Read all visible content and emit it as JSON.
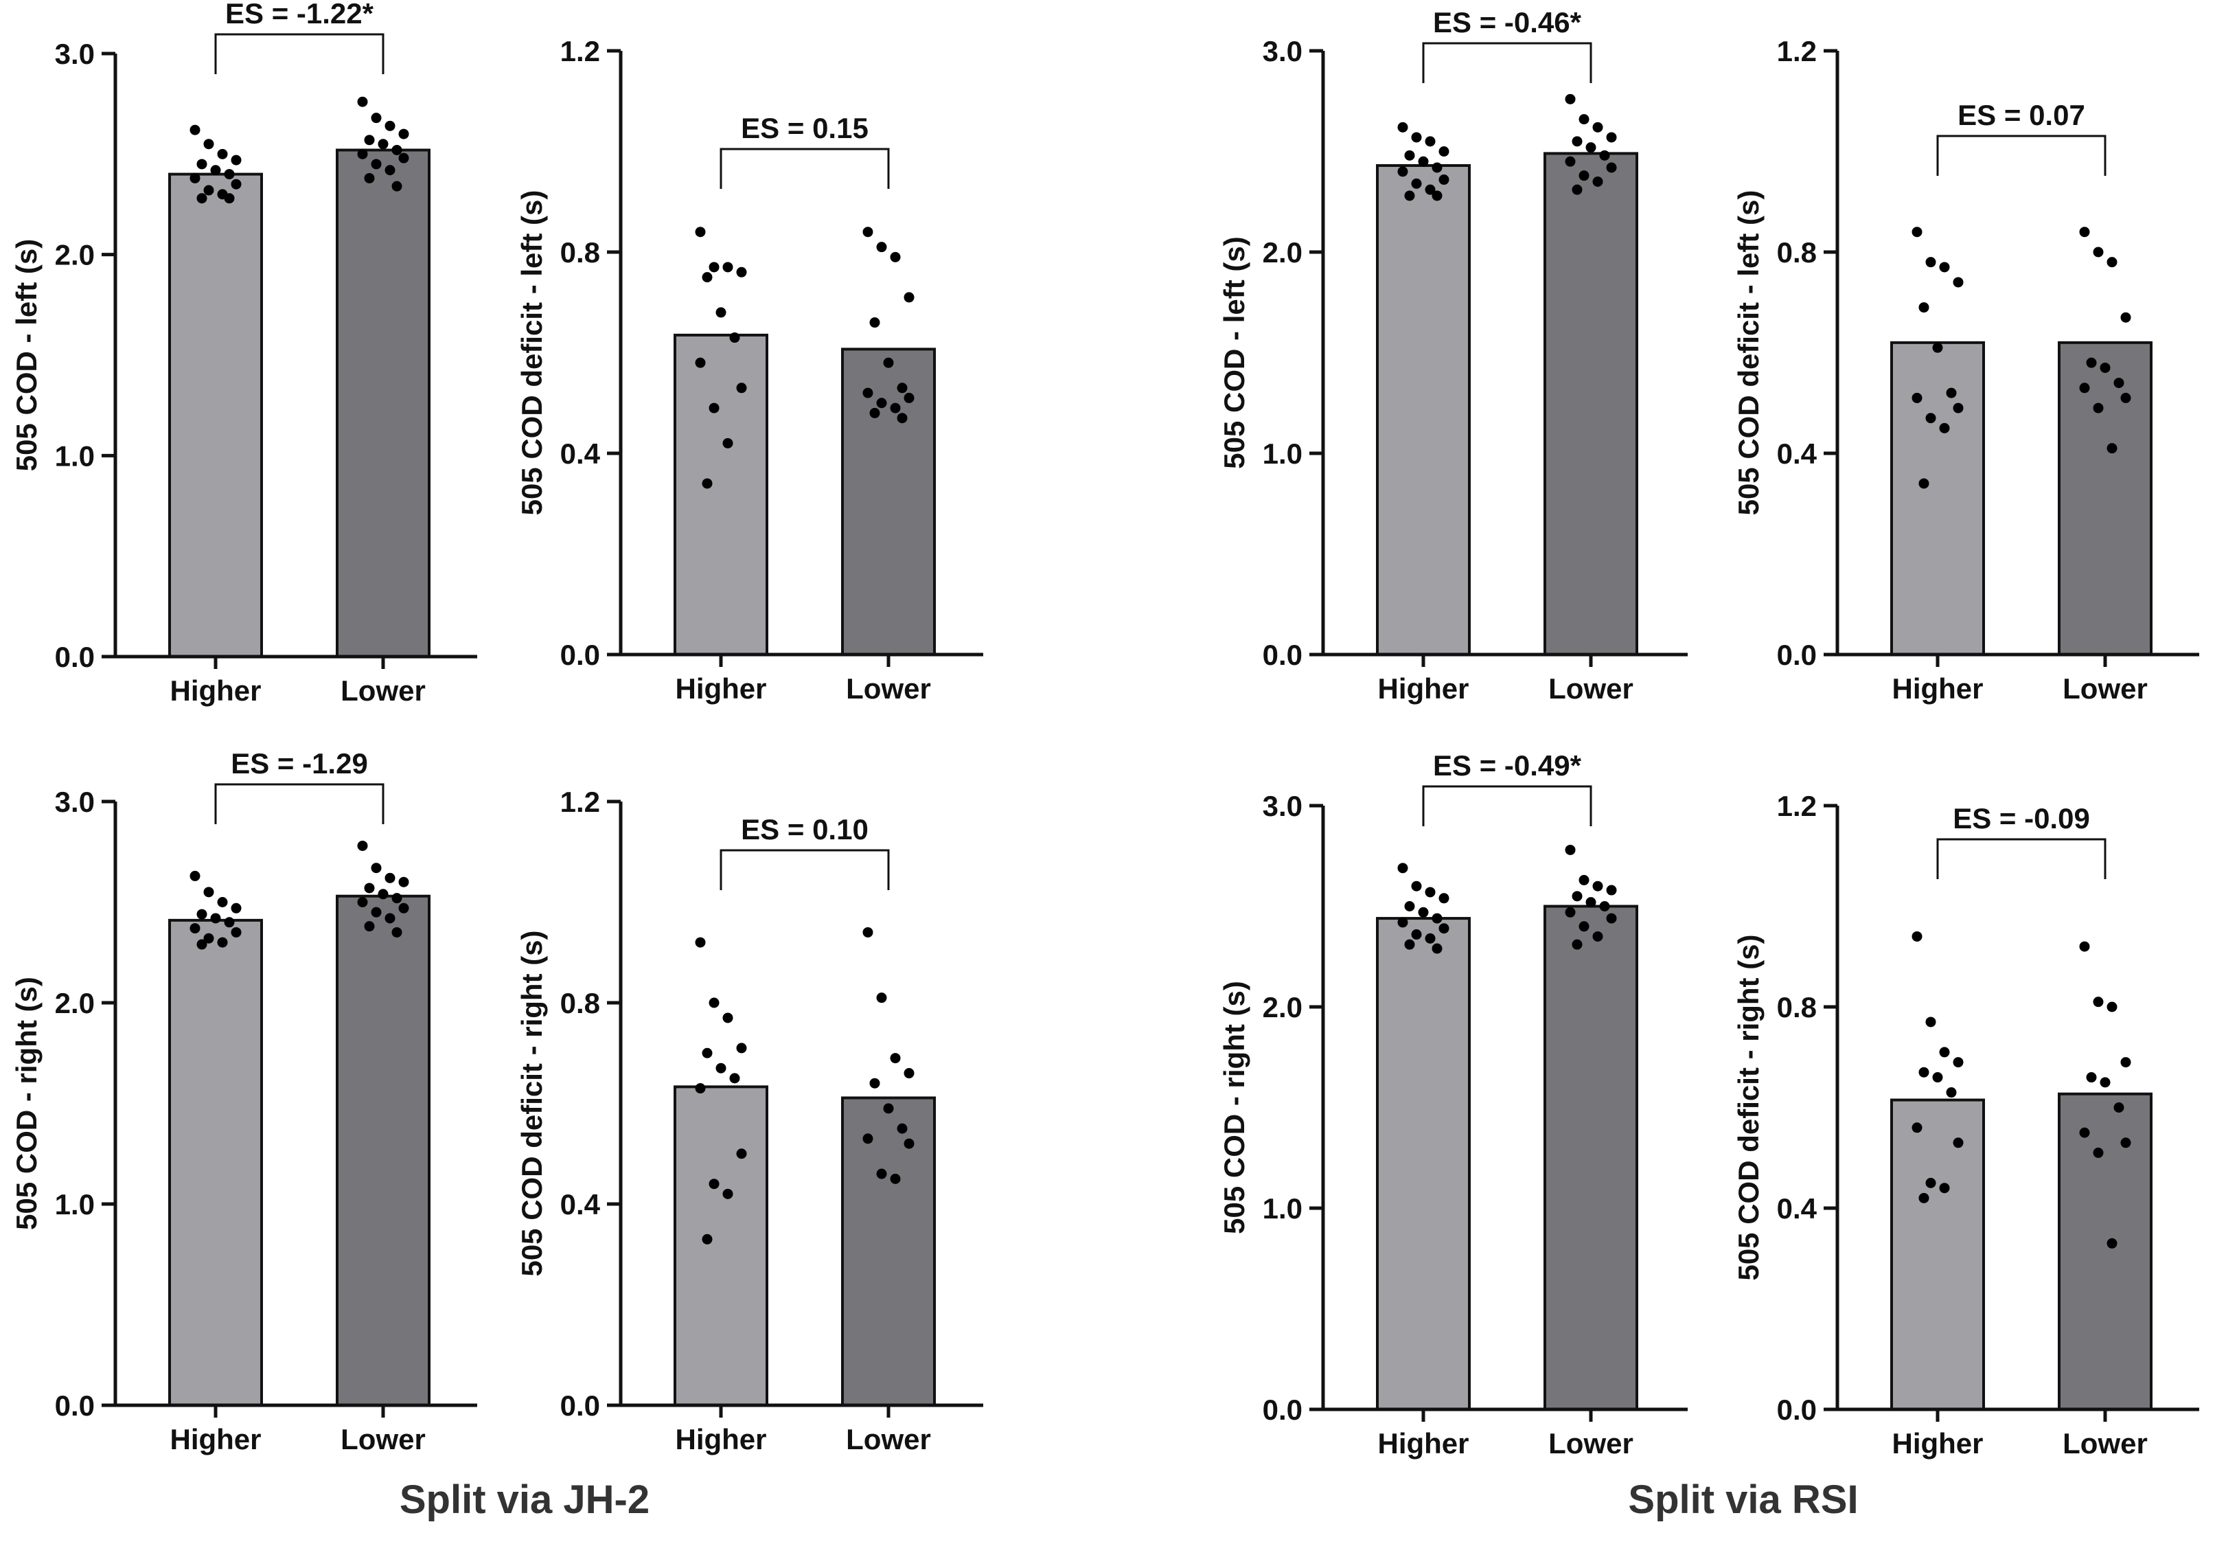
{
  "colors": {
    "higher": "#a0a0a5",
    "lower": "#76767a",
    "axis": "#111111",
    "dot": "#000000",
    "text": "#111111",
    "caption": "#333333"
  },
  "group_labels": [
    "Split via JH-2",
    "Split via RSI"
  ],
  "chart_data": [
    {
      "id": "jh2-cod-left",
      "type": "bar",
      "categories": [
        "Higher",
        "Lower"
      ],
      "values": [
        2.4,
        2.52
      ],
      "points": [
        [
          2.62,
          2.55,
          2.5,
          2.47,
          2.45,
          2.42,
          2.4,
          2.38,
          2.35,
          2.32,
          2.3,
          2.28,
          2.28
        ],
        [
          2.76,
          2.68,
          2.64,
          2.6,
          2.57,
          2.55,
          2.52,
          2.5,
          2.48,
          2.45,
          2.42,
          2.38,
          2.34
        ]
      ],
      "ylabel": "505 COD - left (s)",
      "ylim": [
        0,
        3.0
      ],
      "yticks": [
        0,
        1.0,
        2.0,
        3.0
      ],
      "tick_format": "0.0",
      "es": "ES = -1.22*"
    },
    {
      "id": "jh2-deficit-left",
      "type": "bar",
      "categories": [
        "Higher",
        "Lower"
      ],
      "values": [
        0.635,
        0.607
      ],
      "points": [
        [
          0.84,
          0.77,
          0.77,
          0.76,
          0.75,
          0.68,
          0.63,
          0.58,
          0.53,
          0.49,
          0.42,
          0.34
        ],
        [
          0.84,
          0.81,
          0.79,
          0.71,
          0.66,
          0.58,
          0.53,
          0.52,
          0.51,
          0.5,
          0.49,
          0.48,
          0.47
        ]
      ],
      "ylabel": "505 COD deficit - left (s)",
      "ylim": [
        0,
        1.2
      ],
      "yticks": [
        0,
        0.4,
        0.8,
        1.2
      ],
      "tick_format": "0.0",
      "es": "ES = 0.15"
    },
    {
      "id": "rsi-cod-left",
      "type": "bar",
      "categories": [
        "Higher",
        "Lower"
      ],
      "values": [
        2.43,
        2.49
      ],
      "points": [
        [
          2.62,
          2.57,
          2.55,
          2.5,
          2.48,
          2.45,
          2.42,
          2.4,
          2.36,
          2.34,
          2.31,
          2.28,
          2.28
        ],
        [
          2.76,
          2.66,
          2.62,
          2.57,
          2.55,
          2.52,
          2.48,
          2.45,
          2.42,
          2.38,
          2.35,
          2.31
        ]
      ],
      "ylabel": "505 COD - left (s)",
      "ylim": [
        0,
        3.0
      ],
      "yticks": [
        0,
        1.0,
        2.0,
        3.0
      ],
      "tick_format": "0.0",
      "es": "ES = -0.46*"
    },
    {
      "id": "rsi-deficit-left",
      "type": "bar",
      "categories": [
        "Higher",
        "Lower"
      ],
      "values": [
        0.62,
        0.62
      ],
      "points": [
        [
          0.84,
          0.78,
          0.77,
          0.74,
          0.69,
          0.61,
          0.52,
          0.51,
          0.49,
          0.47,
          0.45,
          0.34
        ],
        [
          0.84,
          0.8,
          0.78,
          0.67,
          0.58,
          0.57,
          0.54,
          0.53,
          0.51,
          0.49,
          0.41
        ]
      ],
      "ylabel": "505 COD deficit - left (s)",
      "ylim": [
        0,
        1.2
      ],
      "yticks": [
        0,
        0.4,
        0.8,
        1.2
      ],
      "tick_format": "0.0",
      "es": "ES = 0.07"
    },
    {
      "id": "jh2-cod-right",
      "type": "bar",
      "categories": [
        "Higher",
        "Lower"
      ],
      "values": [
        2.41,
        2.53
      ],
      "points": [
        [
          2.63,
          2.55,
          2.5,
          2.47,
          2.44,
          2.42,
          2.4,
          2.37,
          2.35,
          2.32,
          2.3,
          2.29
        ],
        [
          2.78,
          2.67,
          2.62,
          2.6,
          2.57,
          2.54,
          2.52,
          2.5,
          2.47,
          2.45,
          2.42,
          2.38,
          2.35
        ]
      ],
      "ylabel": "505 COD - right (s)",
      "ylim": [
        0,
        3.0
      ],
      "yticks": [
        0,
        1.0,
        2.0,
        3.0
      ],
      "tick_format": "0.0",
      "es": "ES = -1.29"
    },
    {
      "id": "jh2-deficit-right",
      "type": "bar",
      "categories": [
        "Higher",
        "Lower"
      ],
      "values": [
        0.633,
        0.611
      ],
      "points": [
        [
          0.92,
          0.8,
          0.77,
          0.71,
          0.7,
          0.67,
          0.65,
          0.63,
          0.5,
          0.44,
          0.42,
          0.33
        ],
        [
          0.94,
          0.81,
          0.69,
          0.66,
          0.64,
          0.59,
          0.55,
          0.53,
          0.52,
          0.46,
          0.45
        ]
      ],
      "ylabel": "505 COD deficit - right (s)",
      "ylim": [
        0,
        1.2
      ],
      "yticks": [
        0,
        0.4,
        0.8,
        1.2
      ],
      "tick_format": "0.0",
      "es": "ES = 0.10"
    },
    {
      "id": "rsi-cod-right",
      "type": "bar",
      "categories": [
        "Higher",
        "Lower"
      ],
      "values": [
        2.44,
        2.5
      ],
      "points": [
        [
          2.69,
          2.6,
          2.57,
          2.54,
          2.5,
          2.47,
          2.44,
          2.42,
          2.39,
          2.36,
          2.34,
          2.31,
          2.29
        ],
        [
          2.78,
          2.63,
          2.6,
          2.58,
          2.55,
          2.52,
          2.5,
          2.47,
          2.44,
          2.4,
          2.35,
          2.31
        ]
      ],
      "ylabel": "505 COD - right (s)",
      "ylim": [
        0,
        3.0
      ],
      "yticks": [
        0,
        1.0,
        2.0,
        3.0
      ],
      "tick_format": "0.0",
      "es": "ES = -0.49*"
    },
    {
      "id": "rsi-deficit-right",
      "type": "bar",
      "categories": [
        "Higher",
        "Lower"
      ],
      "values": [
        0.615,
        0.627
      ],
      "points": [
        [
          0.94,
          0.77,
          0.71,
          0.69,
          0.67,
          0.66,
          0.63,
          0.56,
          0.53,
          0.45,
          0.44,
          0.42
        ],
        [
          0.92,
          0.81,
          0.8,
          0.69,
          0.66,
          0.65,
          0.6,
          0.55,
          0.53,
          0.51,
          0.33
        ]
      ],
      "ylabel": "505 COD deficit - right (s)",
      "ylim": [
        0,
        1.2
      ],
      "yticks": [
        0,
        0.4,
        0.8,
        1.2
      ],
      "tick_format": "0.0",
      "es": "ES = -0.09"
    }
  ]
}
